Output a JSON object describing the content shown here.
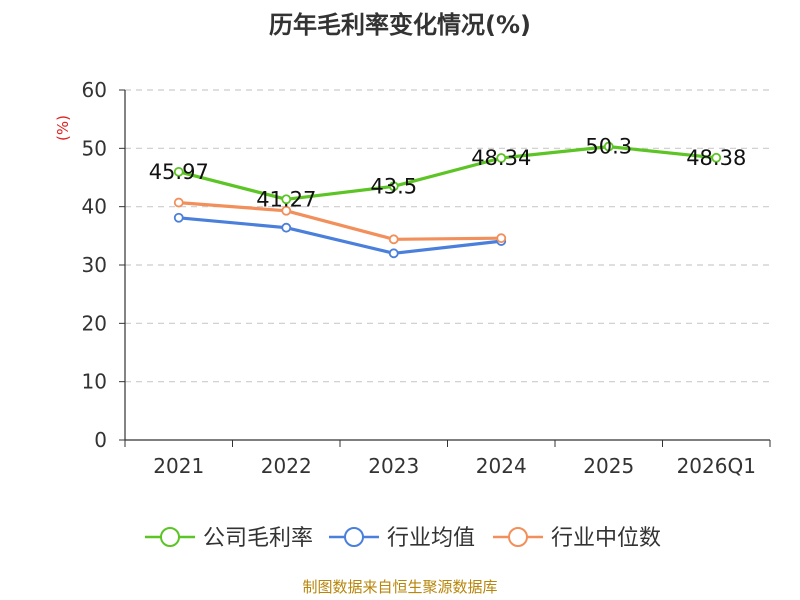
{
  "chart_data": {
    "type": "line",
    "title": "历年毛利率变化情况(%)",
    "ylabel": "(%)",
    "xlabel": "",
    "ylim": [
      0,
      60
    ],
    "yticks": [
      0,
      10,
      20,
      30,
      40,
      50,
      60
    ],
    "categories": [
      "2021",
      "2022",
      "2023",
      "2024",
      "2025",
      "2026Q1"
    ],
    "grid": true,
    "legend_position": "bottom",
    "series": [
      {
        "name": "公司毛利率",
        "color": "#5cc424",
        "values": [
          45.97,
          41.27,
          43.5,
          48.34,
          50.3,
          48.38
        ],
        "labels": [
          "45.97",
          "41.27",
          "43.5",
          "48.34",
          "50.3",
          "48.38"
        ],
        "show_labels": true
      },
      {
        "name": "行业均值",
        "color": "#4a7fdb",
        "values": [
          38.1,
          36.4,
          32.0,
          34.1,
          null,
          null
        ],
        "show_labels": false
      },
      {
        "name": "行业中位数",
        "color": "#f28f5a",
        "values": [
          40.7,
          39.3,
          34.4,
          34.6,
          null,
          null
        ],
        "show_labels": false
      }
    ]
  },
  "footer": {
    "source": "制图数据来自恒生聚源数据库"
  },
  "colors": {
    "axis": "#333333",
    "grid": "#cccccc",
    "ylabel": "#e02020",
    "footer": "#b8860b",
    "title": "#333333"
  }
}
